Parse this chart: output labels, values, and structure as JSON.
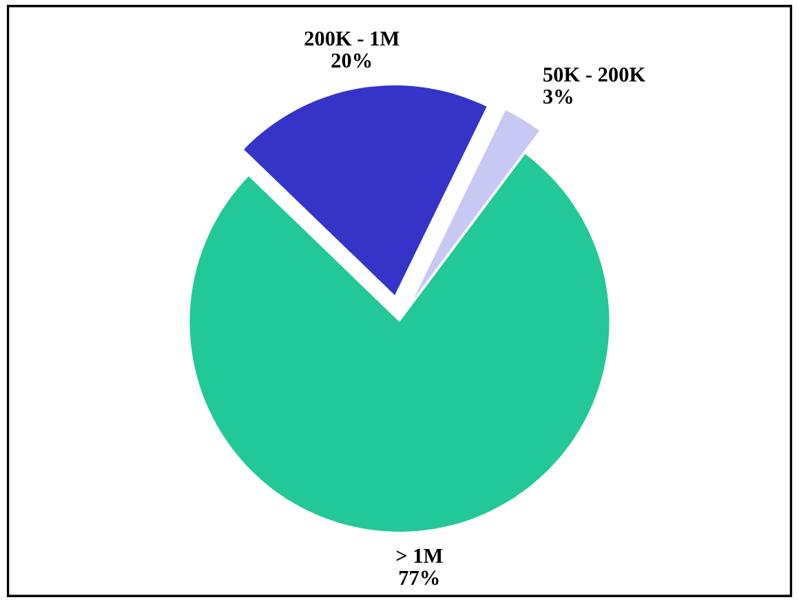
{
  "chart_data": {
    "type": "pie",
    "categories": [
      "200K - 1M",
      "50K - 200K",
      "> 1M"
    ],
    "values": [
      20,
      3,
      77
    ],
    "value_labels": [
      "20%",
      "3%",
      "77%"
    ],
    "colors": [
      "#3434c8",
      "#c8c8f4",
      "#22c898"
    ],
    "legend": false
  }
}
